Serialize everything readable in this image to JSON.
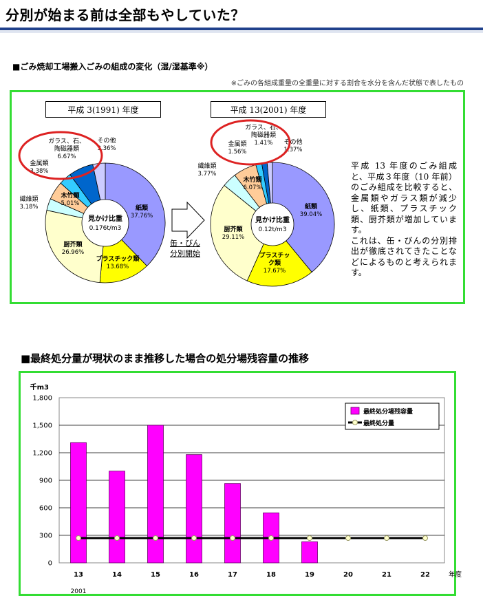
{
  "page": {
    "title": "分別が始まる前は全部もやしていた？",
    "section1": {
      "heading": "■ごみ焼却工場搬入ごみの組成の変化（湿/湿基準※）",
      "note": "※ごみの各組成重量の全重量に対する割合を水分を含んだ状態で表したもの",
      "arrow_caption_1": "缶・びん",
      "arrow_caption_2": "分別開始",
      "description": [
        "平成 13 年度のごみ組成と、平成３年度（10 年前）のごみ組成を比較すると、金属類やガラス類が減少し、紙類、プラスチック類、厨芥類が増加しています。",
        "これは、缶・びんの分別排出が徹底されてきたことなどによるものと考えられます。"
      ]
    },
    "section2": {
      "heading": "■最終処分量が現状のまま推移した場合の処分場残容量の推移"
    },
    "colors": {
      "paper": "#9999ff",
      "plastic": "#ffff00",
      "kitchen": "#ffffcc",
      "fiber": "#ccffff",
      "wood": "#ffcc99",
      "metal": "#33ccff",
      "glass": "#0066cc",
      "other": "#ccccff",
      "bar": "#ff00ff",
      "frame": "#33dd33",
      "oval": "#dd2222"
    }
  },
  "chart_data": [
    {
      "type": "pie",
      "title": "平成 3(1991) 年度",
      "center_label": [
        "見かけ比重",
        "0.176t/m3"
      ],
      "slices": [
        {
          "name": "紙類",
          "label": "37.76%",
          "value": 37.76,
          "color": "#9999ff"
        },
        {
          "name": "プラスチック類",
          "label": "13.68%",
          "value": 13.68,
          "color": "#ffff00"
        },
        {
          "name": "厨芥類",
          "label": "26.96%",
          "value": 26.96,
          "color": "#ffffcc"
        },
        {
          "name": "繊維類",
          "label": "3.18%",
          "value": 3.18,
          "color": "#ccffff"
        },
        {
          "name": "木竹類",
          "label": "5.01%",
          "value": 5.01,
          "color": "#ffcc99"
        },
        {
          "name": "金属類",
          "label": "3.38%",
          "value": 3.38,
          "color": "#33ccff"
        },
        {
          "name": "ガラス、石、陶磁器類",
          "label": "6.67%",
          "value": 6.67,
          "color": "#0066cc"
        },
        {
          "name": "その他",
          "label": "3.36%",
          "value": 3.36,
          "color": "#ccccff"
        }
      ]
    },
    {
      "type": "pie",
      "title": "平成 13(2001) 年度",
      "center_label": [
        "見かけ比重",
        "0.12t/m3"
      ],
      "slices": [
        {
          "name": "紙類",
          "label": "39.04%",
          "value": 39.04,
          "color": "#9999ff"
        },
        {
          "name": "プラスチック類",
          "label": "17.67%",
          "value": 17.67,
          "color": "#ffff00"
        },
        {
          "name": "厨芥類",
          "label": "29.11%",
          "value": 29.11,
          "color": "#ffffcc"
        },
        {
          "name": "繊維類",
          "label": "3.77%",
          "value": 3.77,
          "color": "#ccffff"
        },
        {
          "name": "木竹類",
          "label": "6.07%",
          "value": 6.07,
          "color": "#ffcc99"
        },
        {
          "name": "金属類",
          "label": "1.56%",
          "value": 1.56,
          "color": "#33ccff"
        },
        {
          "name": "ガラス、石、陶磁器類",
          "label": "1.41%",
          "value": 1.41,
          "color": "#0066cc"
        },
        {
          "name": "その他",
          "label": "1.37%",
          "value": 1.37,
          "color": "#ccccff"
        }
      ]
    },
    {
      "type": "bar",
      "categories": [
        "13",
        "14",
        "15",
        "16",
        "17",
        "18",
        "19",
        "20",
        "21",
        "22"
      ],
      "x_unit": "年度",
      "first_year_note": "2001",
      "ylabel": "千m3",
      "ylim": [
        0,
        1800
      ],
      "yticks": [
        "0",
        "300",
        "600",
        "900",
        "1,200",
        "1,500",
        "1,800"
      ],
      "grid": true,
      "legend_position": "top-right",
      "series": [
        {
          "name": "最終処分場残容量",
          "type": "bar",
          "color": "#ff00ff",
          "values": [
            1310,
            1000,
            1500,
            1180,
            865,
            545,
            230,
            null,
            null,
            null
          ]
        },
        {
          "name": "最終処分量",
          "type": "line",
          "color": "#000000",
          "values": [
            270,
            270,
            270,
            270,
            270,
            270,
            270,
            270,
            270,
            270
          ]
        }
      ]
    }
  ]
}
